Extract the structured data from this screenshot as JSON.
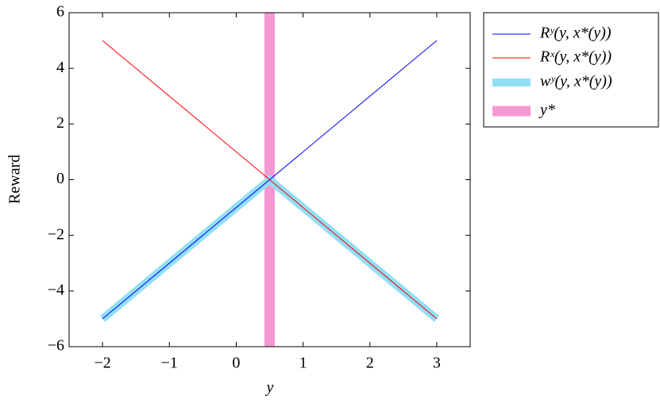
{
  "chart_data": {
    "type": "line",
    "xlabel": "y",
    "ylabel": "Reward",
    "xlim": [
      -2.5,
      3.5
    ],
    "ylim": [
      -6,
      6
    ],
    "xticks": [
      {
        "value": -2,
        "label": "−2"
      },
      {
        "value": -1,
        "label": "−1"
      },
      0,
      1,
      2,
      3
    ],
    "yticks": [
      {
        "value": -6,
        "label": "−6"
      },
      {
        "value": -4,
        "label": "−4"
      },
      {
        "value": -2,
        "label": "−2"
      },
      0,
      2,
      4,
      6
    ],
    "legend": "outside-right",
    "series": [
      {
        "name": "Rʸ(y, x*(y))",
        "color": "#0000ff",
        "line_width": 1,
        "x": [
          -2,
          3
        ],
        "values": [
          -5,
          5
        ]
      },
      {
        "name": "Rˣ(y, x*(y))",
        "color": "#ff0000",
        "line_width": 1,
        "x": [
          -2,
          3
        ],
        "values": [
          5,
          -5
        ]
      },
      {
        "name": "wʸ(y, x*(y))",
        "color": "#91dff5",
        "line_width": 10,
        "x": [
          -2,
          0.5,
          3
        ],
        "values": [
          -5,
          0,
          -5
        ]
      },
      {
        "name": "y*",
        "color": "#f49ad0",
        "line_width": 13,
        "x": [
          0.5,
          0.5
        ],
        "values": [
          -6,
          6
        ]
      }
    ]
  }
}
